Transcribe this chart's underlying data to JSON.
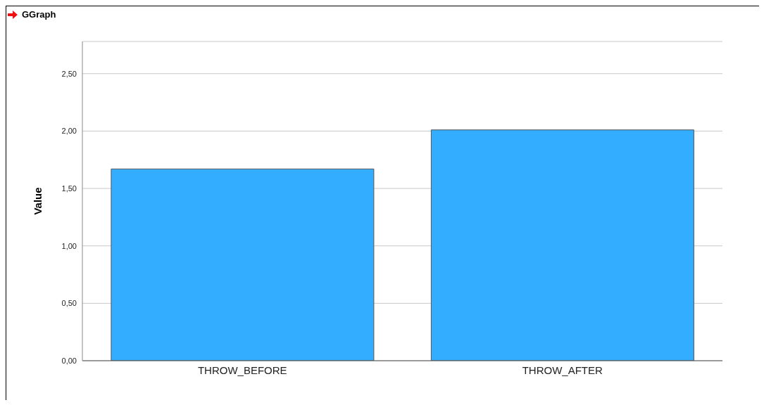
{
  "chart_data": {
    "type": "bar",
    "title": "GGraph",
    "ylabel": "Value",
    "categories": [
      "THROW_BEFORE",
      "THROW_AFTER"
    ],
    "values": [
      1.67,
      2.01
    ],
    "color": "#33adff",
    "ylim": [
      0,
      2.78
    ],
    "yticks": [
      {
        "value": 0,
        "label": "0,00"
      },
      {
        "value": 0.5,
        "label": "0,50"
      },
      {
        "value": 1,
        "label": "1,00"
      },
      {
        "value": 1.5,
        "label": "1,50"
      },
      {
        "value": 2,
        "label": "2,00"
      },
      {
        "value": 2.5,
        "label": "2,50"
      }
    ],
    "grid": "y"
  }
}
